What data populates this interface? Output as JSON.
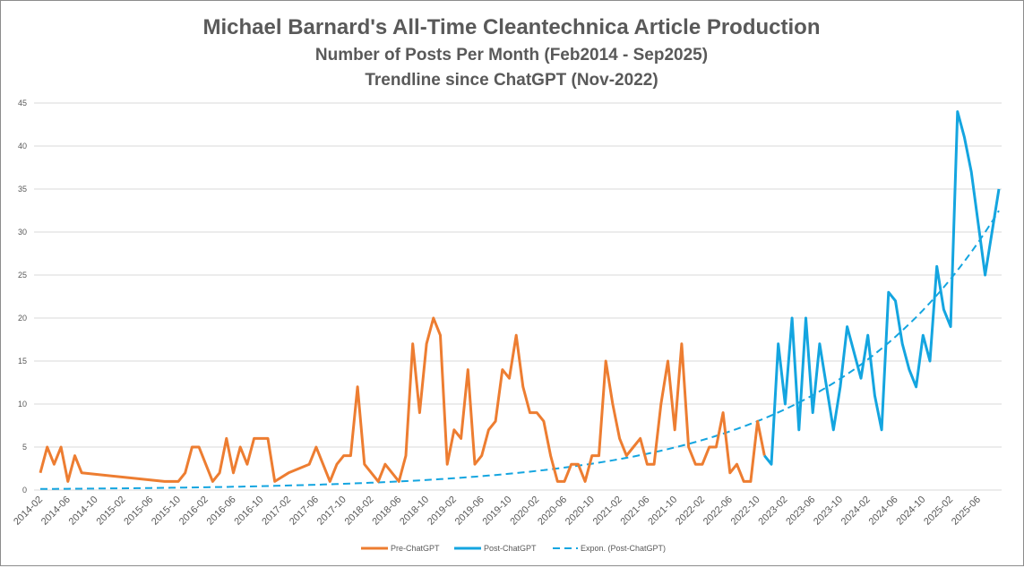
{
  "chart_data": {
    "type": "line",
    "title": "Michael Barnard's All-Time Cleantechnica Article Production",
    "subtitle": "Number of Posts Per Month (Feb2014 - Sep2025)",
    "subtitle2": "Trendline since ChatGPT (Nov-2022)",
    "xlabel": "",
    "ylabel": "",
    "x_start": "2014-02",
    "x_end": "2025-09",
    "x_tick_every_months": 4,
    "ylim": [
      0,
      45
    ],
    "y_ticks": [
      0,
      5,
      10,
      15,
      20,
      25,
      30,
      35,
      40,
      45
    ],
    "grid": true,
    "legend_position": "bottom",
    "series": [
      {
        "name": "Pre-ChatGPT",
        "color": "#ED7D31",
        "start": "2014-02",
        "values": [
          2,
          5,
          3,
          5,
          1,
          4,
          2,
          null,
          null,
          null,
          null,
          null,
          null,
          null,
          null,
          null,
          null,
          null,
          1,
          1,
          1,
          2,
          5,
          5,
          3,
          1,
          2,
          6,
          2,
          5,
          3,
          6,
          6,
          6,
          1,
          null,
          2,
          null,
          null,
          3,
          5,
          3,
          1,
          3,
          4,
          4,
          12,
          3,
          2,
          1,
          3,
          2,
          1,
          4,
          17,
          9,
          17,
          20,
          18,
          3,
          7,
          6,
          14,
          3,
          4,
          7,
          8,
          14,
          13,
          18,
          12,
          9,
          9,
          8,
          4,
          1,
          1,
          3,
          3,
          1,
          4,
          4,
          15,
          10,
          6,
          4,
          5,
          6,
          3,
          3,
          10,
          15,
          7,
          17,
          5,
          3,
          3,
          5,
          5,
          9,
          2,
          3,
          1,
          1,
          8,
          4
        ]
      },
      {
        "name": "Post-ChatGPT",
        "color": "#14A5E0",
        "start": "2022-11",
        "values": [
          4,
          3,
          17,
          10,
          20,
          7,
          20,
          9,
          17,
          12,
          7,
          12,
          19,
          16,
          13,
          18,
          11,
          7,
          23,
          22,
          17,
          14,
          12,
          18,
          15,
          26,
          21,
          19,
          44,
          41,
          37,
          31,
          25,
          30,
          35
        ]
      }
    ],
    "trendline": {
      "name": "Expon. (Post-ChatGPT)",
      "color": "#14A5E0",
      "model": "exponential",
      "a": 0.125,
      "b": 0.04,
      "note_units": "y = a*exp(b*months since 2014-02)"
    }
  }
}
